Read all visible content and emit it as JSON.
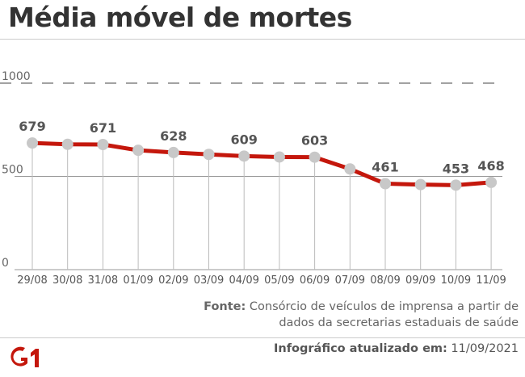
{
  "header": {
    "title": "Média móvel de mortes"
  },
  "chart_data": {
    "type": "line",
    "categories": [
      "29/08",
      "30/08",
      "31/08",
      "01/09",
      "02/09",
      "03/09",
      "04/09",
      "05/09",
      "06/09",
      "07/09",
      "08/09",
      "09/09",
      "10/09",
      "11/09"
    ],
    "values": [
      679,
      672,
      671,
      640,
      628,
      618,
      609,
      604,
      603,
      540,
      461,
      456,
      453,
      468
    ],
    "data_labels": [
      {
        "index": 0,
        "text": "679"
      },
      {
        "index": 2,
        "text": "671"
      },
      {
        "index": 4,
        "text": "628"
      },
      {
        "index": 6,
        "text": "609"
      },
      {
        "index": 8,
        "text": "603"
      },
      {
        "index": 10,
        "text": "461"
      },
      {
        "index": 12,
        "text": "453"
      },
      {
        "index": 13,
        "text": "468"
      }
    ],
    "yticks": [
      {
        "value": 0,
        "label": "0"
      },
      {
        "value": 500,
        "label": "500"
      },
      {
        "value": 1000,
        "label": "1000"
      }
    ],
    "ylim": [
      0,
      1000
    ],
    "line_color": "#c4170c",
    "marker_color": "#c8c8c8",
    "grid": true
  },
  "footer": {
    "source_label": "Fonte:",
    "source_text": "Consórcio de veículos de imprensa a partir de dados da secretarias estaduais de saúde",
    "updated_label": "Infográfico atualizado em:",
    "updated_date": "11/09/2021",
    "logo_text": "G1",
    "logo_color": "#c4170c"
  }
}
